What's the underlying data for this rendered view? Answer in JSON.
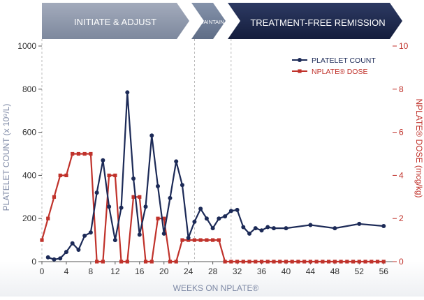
{
  "phases": [
    {
      "label": "INITIATE & ADJUST",
      "color": "#8892a6"
    },
    {
      "label": "MAINTAIN",
      "color": "#6f7d95"
    },
    {
      "label": "TREATMENT-FREE REMISSION",
      "color": "#1f2b4f"
    }
  ],
  "colors": {
    "platelet": "#1c2a57",
    "dose": "#c0322b",
    "axis": "#555555",
    "grid_divider": "#aaaaaa",
    "left_axis_label": "#7f8aa6",
    "right_axis_label": "#c0322b",
    "x_axis_label": "#7f8aa6"
  },
  "chart_data": {
    "type": "line",
    "xlabel": "WEEKS ON NPLATE®",
    "ylabel": "PLATELET COUNT (x 10⁹/L)",
    "y2label": "NPLATE® DOSE (mcg/kg)",
    "xlim": [
      0,
      57
    ],
    "ylim": [
      0,
      1000
    ],
    "y2lim": [
      0,
      10
    ],
    "x_ticks": [
      "0",
      "4",
      "8",
      "12",
      "16",
      "20",
      "24",
      "28",
      "32",
      "36",
      "40",
      "44",
      "48",
      "52",
      "56"
    ],
    "y_ticks": [
      "0",
      "200",
      "400",
      "600",
      "800",
      "1000"
    ],
    "y2_ticks": [
      "0",
      "2",
      "4",
      "6",
      "8",
      "10"
    ],
    "phase_boundaries": [
      25,
      31
    ],
    "legend": {
      "position": "top-right"
    },
    "series": [
      {
        "name": "PLATELET COUNT",
        "axis": "left",
        "marker": "circle",
        "x": [
          1,
          2,
          3,
          4,
          5,
          6,
          7,
          8,
          9,
          10,
          11,
          12,
          13,
          14,
          15,
          16,
          17,
          18,
          19,
          20,
          21,
          22,
          23,
          24,
          25,
          26,
          27,
          28,
          29,
          30,
          31,
          32,
          33,
          34,
          35,
          36,
          37,
          38,
          40,
          44,
          48,
          52,
          56
        ],
        "values": [
          20,
          10,
          15,
          45,
          85,
          55,
          120,
          135,
          320,
          470,
          255,
          100,
          250,
          785,
          385,
          125,
          255,
          585,
          350,
          130,
          295,
          465,
          355,
          110,
          185,
          245,
          200,
          155,
          200,
          210,
          235,
          240,
          160,
          130,
          155,
          145,
          160,
          155,
          155,
          170,
          155,
          175,
          165
        ]
      },
      {
        "name": "NPLATE® DOSE",
        "axis": "right",
        "marker": "square",
        "x": [
          0,
          1,
          2,
          3,
          4,
          5,
          6,
          7,
          8,
          9,
          10,
          11,
          12,
          13,
          14,
          15,
          16,
          17,
          18,
          19,
          20,
          21,
          22,
          23,
          24,
          25,
          26,
          27,
          28,
          29,
          30,
          31,
          32,
          33,
          34,
          35,
          36,
          37,
          38,
          39,
          40,
          41,
          42,
          43,
          44,
          45,
          46,
          47,
          48,
          49,
          50,
          51,
          52,
          53,
          54,
          55,
          56
        ],
        "values": [
          1,
          2,
          3,
          4,
          4,
          5,
          5,
          5,
          5,
          0,
          0,
          4,
          4,
          0,
          0,
          3,
          3,
          0,
          0,
          2,
          2,
          0,
          0,
          1,
          1,
          1,
          1,
          1,
          1,
          1,
          0,
          0,
          0,
          0,
          0,
          0,
          0,
          0,
          0,
          0,
          0,
          0,
          0,
          0,
          0,
          0,
          0,
          0,
          0,
          0,
          0,
          0,
          0,
          0,
          0,
          0,
          0
        ]
      }
    ]
  }
}
